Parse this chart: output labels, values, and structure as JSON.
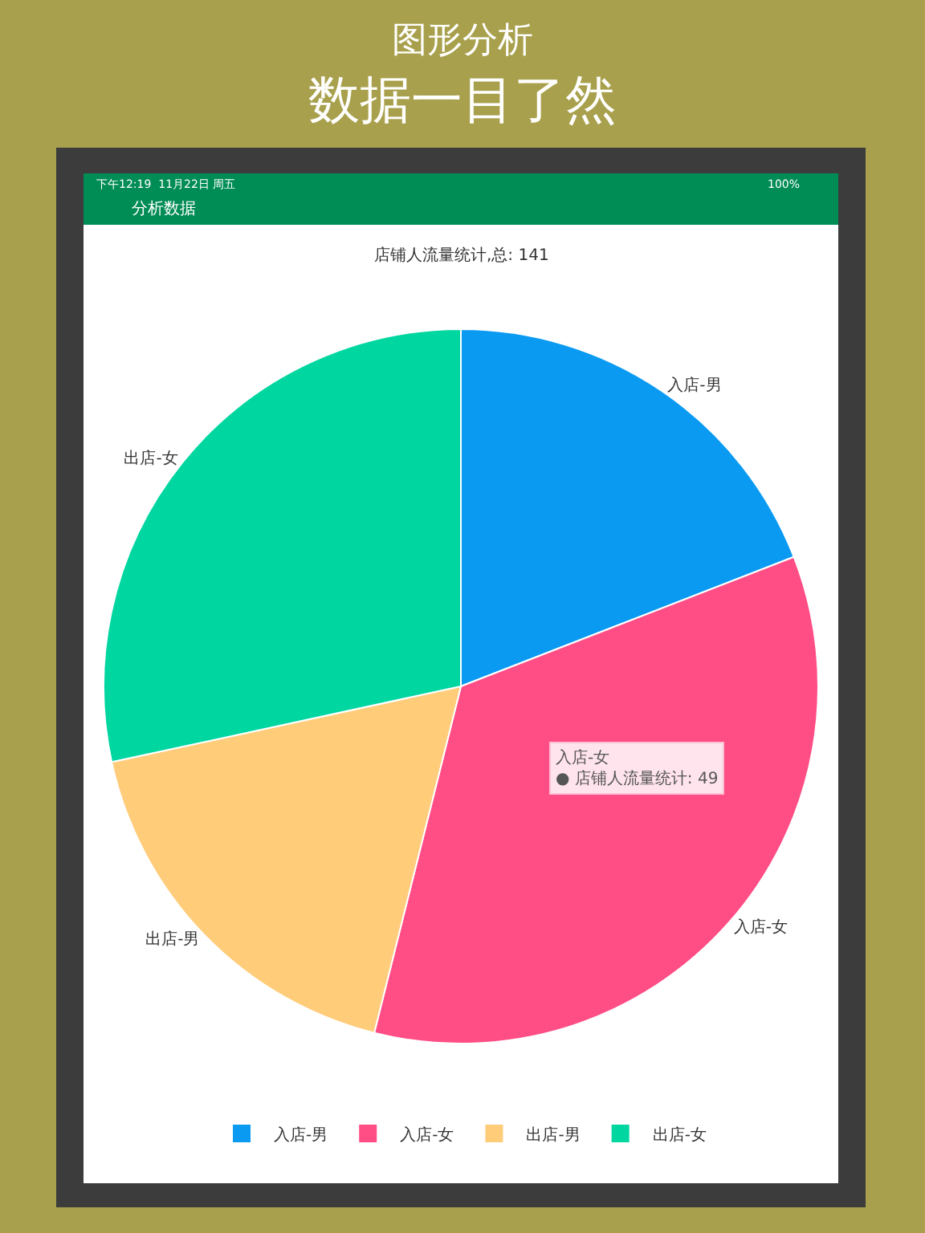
{
  "chart_data": {
    "type": "pie",
    "title": "店铺人流量统计,总: 141",
    "categories": [
      "入店-男",
      "入店-女",
      "出店-男",
      "出店-女"
    ],
    "values": [
      19.1,
      34.8,
      17.7,
      28.4
    ],
    "colors": [
      "#0a9af2",
      "#ff4d85",
      "#ffcc7a",
      "#00d6a0"
    ],
    "legend": "bottom",
    "annotations": [
      "图形分析",
      "数据一目了然",
      "分析数据",
      "下午12:19  11月22日 周五",
      "100%",
      "入店-女\n● 店铺人流量统计: 49"
    ]
  }
}
